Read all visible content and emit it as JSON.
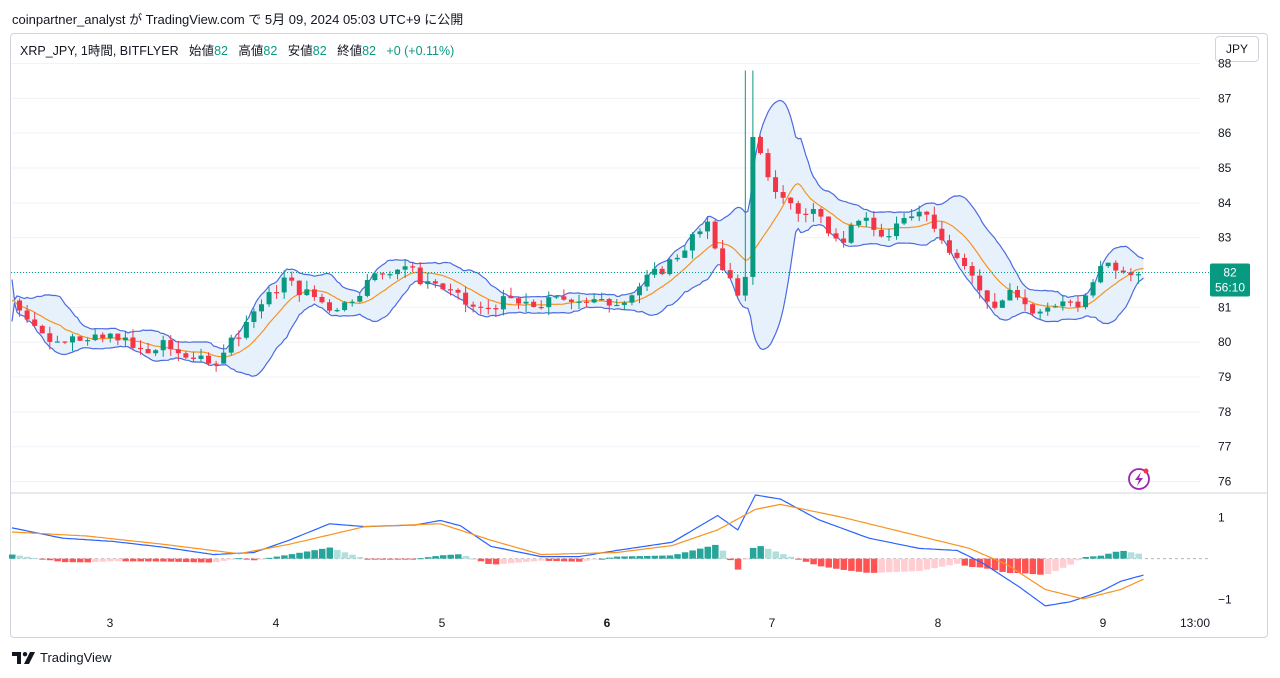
{
  "header": {
    "text": "coinpartner_analyst が TradingView.com で 5月 09, 2024 05:03 UTC+9 に公開"
  },
  "legend": {
    "symbol": "XRP_JPY, 1時間, BITFLYER",
    "open_label": "始値",
    "open": "82",
    "high_label": "高値",
    "high": "82",
    "low_label": "安値",
    "low": "82",
    "close_label": "終値",
    "close": "82",
    "change": "+0 (+0.11%)"
  },
  "currency_button": "JPY",
  "price_label": {
    "price": "82",
    "countdown": "56:10"
  },
  "footer": {
    "brand": "TradingView"
  },
  "colors": {
    "up": "#089981",
    "down": "#f23645",
    "bb_band": "#4c6be0",
    "bb_fill": "#e3effc",
    "ma": "#f7931e",
    "macd": "#2962ff",
    "signal": "#f7931e",
    "grid": "#f0f3fa"
  },
  "chart_data": {
    "type": "candlestick",
    "price_axis": {
      "ylim": [
        75.7,
        88.1
      ],
      "ticks": [
        76,
        77,
        78,
        79,
        80,
        81,
        82,
        83,
        84,
        85,
        86,
        87,
        88
      ]
    },
    "time_axis": {
      "labels": [
        "3",
        "4",
        "5",
        "6",
        "7",
        "8",
        "9",
        "13:00"
      ],
      "bold": [
        "6"
      ]
    },
    "indicator": {
      "name": "MACD",
      "ylim": [
        -1.25,
        1.55
      ],
      "ticks": [
        1,
        -1
      ]
    },
    "price_key": [
      [
        0,
        81.2
      ],
      [
        6,
        80.8
      ],
      [
        12,
        80.2
      ],
      [
        18,
        80.0
      ],
      [
        24,
        80.3
      ],
      [
        30,
        80.0
      ],
      [
        36,
        80.1
      ],
      [
        42,
        80.2
      ],
      [
        48,
        79.8
      ],
      [
        54,
        79.7
      ],
      [
        60,
        79.9
      ],
      [
        66,
        79.7
      ],
      [
        72,
        79.6
      ],
      [
        78,
        79.3
      ],
      [
        84,
        79.8
      ],
      [
        90,
        80.3
      ],
      [
        96,
        80.9
      ],
      [
        102,
        81.3
      ],
      [
        108,
        81.8
      ],
      [
        114,
        81.5
      ],
      [
        120,
        81.3
      ],
      [
        126,
        81.0
      ],
      [
        132,
        81.1
      ],
      [
        138,
        81.5
      ],
      [
        144,
        81.9
      ],
      [
        150,
        82.1
      ],
      [
        156,
        82.2
      ],
      [
        162,
        81.8
      ],
      [
        168,
        81.7
      ],
      [
        174,
        81.4
      ],
      [
        180,
        81.1
      ],
      [
        186,
        80.9
      ],
      [
        192,
        81.1
      ],
      [
        198,
        81.2
      ],
      [
        204,
        81.0
      ],
      [
        210,
        81.1
      ],
      [
        216,
        81.2
      ],
      [
        222,
        81.3
      ],
      [
        228,
        81.2
      ],
      [
        234,
        81.1
      ],
      [
        240,
        81.2
      ],
      [
        246,
        81.4
      ],
      [
        252,
        81.8
      ],
      [
        258,
        82.1
      ],
      [
        264,
        82.5
      ],
      [
        270,
        83.0
      ],
      [
        276,
        83.3
      ],
      [
        282,
        82.2
      ],
      [
        288,
        81.3
      ],
      [
        291,
        82.0
      ],
      [
        294,
        85.8
      ],
      [
        297,
        85.3
      ],
      [
        300,
        84.6
      ],
      [
        306,
        84.2
      ],
      [
        312,
        83.7
      ],
      [
        318,
        83.8
      ],
      [
        324,
        83.3
      ],
      [
        330,
        83.0
      ],
      [
        336,
        83.6
      ],
      [
        342,
        83.2
      ],
      [
        348,
        83.0
      ],
      [
        354,
        83.5
      ],
      [
        360,
        83.9
      ],
      [
        366,
        83.4
      ],
      [
        372,
        82.7
      ],
      [
        378,
        82.2
      ],
      [
        384,
        81.5
      ],
      [
        390,
        81.0
      ],
      [
        396,
        81.4
      ],
      [
        402,
        81.0
      ],
      [
        408,
        80.8
      ],
      [
        414,
        81.2
      ],
      [
        420,
        81.0
      ],
      [
        426,
        81.2
      ],
      [
        432,
        82.3
      ],
      [
        438,
        82.2
      ],
      [
        444,
        82.1
      ],
      [
        449,
        82.0
      ]
    ],
    "macd_key": [
      [
        0,
        0.75
      ],
      [
        20,
        0.5
      ],
      [
        40,
        0.42
      ],
      [
        60,
        0.28
      ],
      [
        80,
        0.1
      ],
      [
        96,
        0.15
      ],
      [
        110,
        0.45
      ],
      [
        126,
        0.85
      ],
      [
        140,
        0.78
      ],
      [
        160,
        0.82
      ],
      [
        170,
        0.93
      ],
      [
        178,
        0.8
      ],
      [
        190,
        0.3
      ],
      [
        210,
        0.05
      ],
      [
        225,
        0.05
      ],
      [
        240,
        0.2
      ],
      [
        262,
        0.4
      ],
      [
        280,
        1.05
      ],
      [
        288,
        0.7
      ],
      [
        295,
        1.55
      ],
      [
        305,
        1.45
      ],
      [
        320,
        0.95
      ],
      [
        340,
        0.5
      ],
      [
        360,
        0.25
      ],
      [
        375,
        0.2
      ],
      [
        385,
        -0.1
      ],
      [
        400,
        -0.7
      ],
      [
        410,
        -1.15
      ],
      [
        420,
        -1.05
      ],
      [
        432,
        -0.8
      ],
      [
        440,
        -0.55
      ],
      [
        449,
        -0.4
      ]
    ],
    "signal_key": [
      [
        0,
        0.65
      ],
      [
        30,
        0.55
      ],
      [
        60,
        0.35
      ],
      [
        90,
        0.12
      ],
      [
        110,
        0.35
      ],
      [
        140,
        0.78
      ],
      [
        170,
        0.85
      ],
      [
        190,
        0.45
      ],
      [
        210,
        0.1
      ],
      [
        240,
        0.15
      ],
      [
        262,
        0.32
      ],
      [
        280,
        0.7
      ],
      [
        295,
        1.2
      ],
      [
        305,
        1.32
      ],
      [
        330,
        1.0
      ],
      [
        360,
        0.55
      ],
      [
        380,
        0.25
      ],
      [
        395,
        -0.15
      ],
      [
        410,
        -0.75
      ],
      [
        425,
        -0.98
      ],
      [
        440,
        -0.75
      ],
      [
        449,
        -0.5
      ]
    ],
    "last_price": 82.0
  }
}
